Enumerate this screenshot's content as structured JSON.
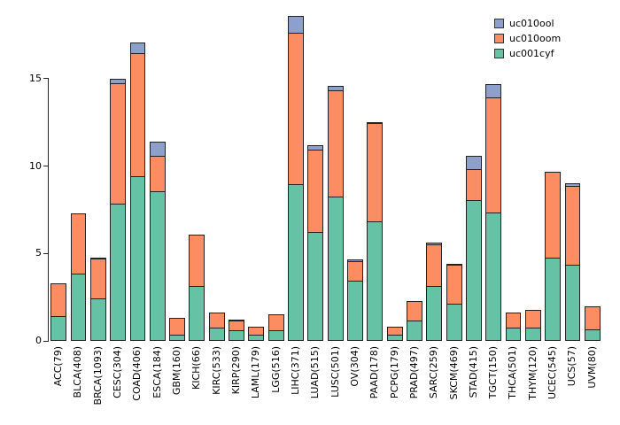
{
  "chart_data": {
    "type": "bar",
    "stacked": true,
    "title": "",
    "xlabel": "",
    "ylabel": "",
    "ylim": [
      0,
      19
    ],
    "yticks": [
      0,
      5,
      10,
      15
    ],
    "grid": false,
    "legend_position": "top-right",
    "categories": [
      "ACC(79)",
      "BLCA(408)",
      "BRCA(1093)",
      "CESC(304)",
      "COAD(406)",
      "ESCA(184)",
      "GBM(160)",
      "KICH(66)",
      "KIRC(533)",
      "KIRP(290)",
      "LAML(179)",
      "LGG(516)",
      "LIHC(371)",
      "LUAD(515)",
      "LUSC(501)",
      "OV(304)",
      "PAAD(178)",
      "PCPG(179)",
      "PRAD(497)",
      "SARC(259)",
      "SKCM(469)",
      "STAD(415)",
      "TGCT(150)",
      "THCA(501)",
      "THYM(120)",
      "UCEC(545)",
      "UCS(57)",
      "UVM(80)"
    ],
    "series": [
      {
        "name": "uc001cyf",
        "color": "#66C2A5",
        "values": [
          1.35,
          3.8,
          2.4,
          7.8,
          9.4,
          8.5,
          0.3,
          3.1,
          0.7,
          0.55,
          0.3,
          0.55,
          8.9,
          6.2,
          8.2,
          3.4,
          6.8,
          0.3,
          1.1,
          3.1,
          2.1,
          8.0,
          7.3,
          0.7,
          0.7,
          4.7,
          4.3,
          0.6
        ]
      },
      {
        "name": "uc010oom",
        "color": "#FC8D62",
        "values": [
          1.95,
          3.5,
          2.25,
          6.9,
          7.0,
          2.05,
          1.0,
          3.0,
          0.9,
          0.56,
          0.5,
          0.95,
          8.7,
          4.7,
          6.1,
          1.1,
          5.6,
          0.5,
          1.2,
          2.35,
          2.2,
          1.8,
          6.6,
          0.9,
          1.07,
          5.0,
          4.5,
          1.4
        ]
      },
      {
        "name": "uc010ool",
        "color": "#8DA0CB",
        "values": [
          0,
          0,
          0.1,
          0.3,
          0.7,
          0.86,
          0,
          0,
          0,
          0.1,
          0,
          0,
          1.0,
          0.3,
          0.3,
          0.15,
          0.1,
          0,
          0,
          0.15,
          0.1,
          0.8,
          0.8,
          0,
          0,
          0,
          0.2,
          0
        ]
      }
    ],
    "legend": [
      {
        "label": "uc010ool",
        "color": "#8DA0CB"
      },
      {
        "label": "uc010oom",
        "color": "#FC8D62"
      },
      {
        "label": "uc001cyf",
        "color": "#66C2A5"
      }
    ]
  }
}
